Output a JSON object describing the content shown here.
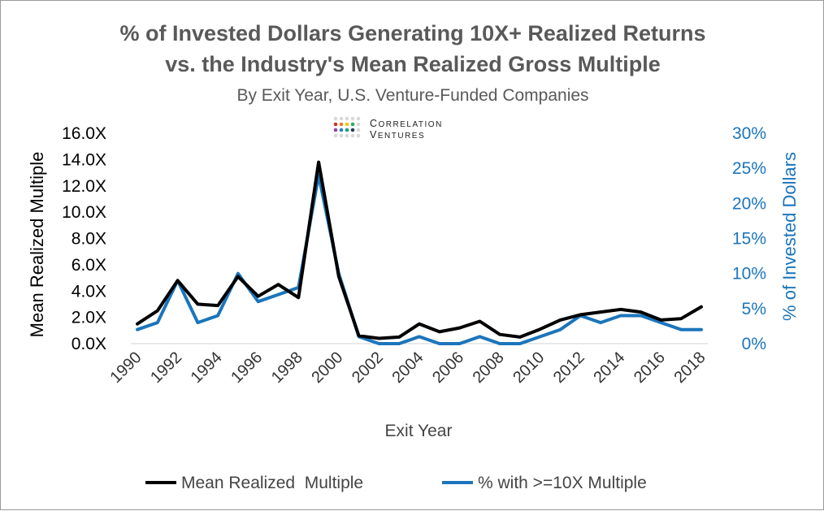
{
  "chart_data": {
    "type": "line",
    "title_line1": "% of Invested Dollars Generating 10X+ Realized Returns",
    "title_line2": "vs. the Industry's Mean Realized Gross Multiple",
    "subtitle": "By Exit Year, U.S. Venture-Funded Companies",
    "logo": {
      "line1": "Correlation",
      "line2": "Ventures"
    },
    "xlabel": "Exit Year",
    "ylabel_left": "Mean Realized Multiple",
    "ylabel_right": "% of Invested Dollars",
    "x": [
      1990,
      1991,
      1992,
      1993,
      1994,
      1995,
      1996,
      1997,
      1998,
      1999,
      2000,
      2001,
      2002,
      2003,
      2004,
      2005,
      2006,
      2007,
      2008,
      2009,
      2010,
      2011,
      2012,
      2013,
      2014,
      2015,
      2016,
      2017,
      2018
    ],
    "x_tick_labels": [
      "1990",
      "1992",
      "1994",
      "1996",
      "1998",
      "2000",
      "2002",
      "2004",
      "2006",
      "2008",
      "2010",
      "2012",
      "2014",
      "2016",
      "2018"
    ],
    "y_left_ticks": [
      "0.0X",
      "2.0X",
      "4.0X",
      "6.0X",
      "8.0X",
      "10.0X",
      "12.0X",
      "14.0X",
      "16.0X"
    ],
    "y_left_lim": [
      0,
      16
    ],
    "y_right_ticks": [
      "0%",
      "5%",
      "10%",
      "15%",
      "20%",
      "25%",
      "30%"
    ],
    "y_right_lim": [
      0,
      30
    ],
    "grid": false,
    "legend_position": "bottom",
    "series": [
      {
        "name": "Mean Realized  Multiple",
        "axis": "left",
        "color": "#000000",
        "values": [
          1.5,
          2.5,
          4.8,
          3.0,
          2.9,
          5.1,
          3.6,
          4.5,
          3.5,
          13.8,
          5.1,
          0.6,
          0.4,
          0.5,
          1.5,
          0.9,
          1.2,
          1.7,
          0.7,
          0.5,
          1.1,
          1.8,
          2.2,
          2.4,
          2.6,
          2.4,
          1.8,
          1.9,
          2.8
        ]
      },
      {
        "name": "% with >=10X Multiple",
        "axis": "right",
        "color": "#1b75bb",
        "values": [
          2,
          3,
          9,
          3,
          4,
          10,
          6,
          7,
          8,
          24,
          10,
          1,
          0,
          0,
          1,
          0,
          0,
          1,
          0,
          0,
          1,
          2,
          4,
          3,
          4,
          4,
          3,
          2,
          2
        ]
      }
    ]
  }
}
